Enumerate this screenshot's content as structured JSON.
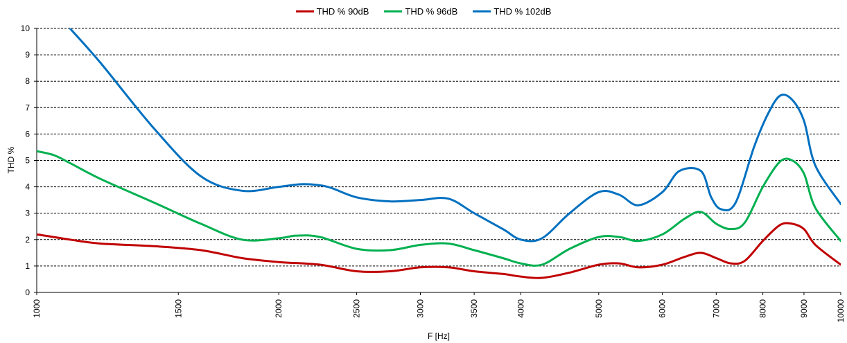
{
  "chart_data": {
    "type": "line",
    "title": "",
    "xlabel": "F [Hz]",
    "ylabel": "THD %",
    "xscale": "log",
    "xlim": [
      1000,
      10000
    ],
    "ylim": [
      0,
      10
    ],
    "grid": "horizontal dashed",
    "legend_position": "top",
    "x_ticks": [
      "1000",
      "1500",
      "2000",
      "2500",
      "3000",
      "3500",
      "4000",
      "5000",
      "6000",
      "7000",
      "8000",
      "9000",
      "10000"
    ],
    "y_ticks": [
      "0",
      "1",
      "2",
      "3",
      "4",
      "5",
      "6",
      "7",
      "8",
      "9",
      "10"
    ],
    "series": [
      {
        "name": "THD % 90dB",
        "color": "#c00000",
        "x": [
          1000,
          1100,
          1200,
          1400,
          1600,
          1800,
          2000,
          2250,
          2500,
          2750,
          3000,
          3250,
          3500,
          3800,
          4000,
          4250,
          4600,
          5000,
          5300,
          5600,
          6000,
          6400,
          6700,
          7000,
          7300,
          7600,
          8000,
          8400,
          8700,
          9000,
          9300,
          10000
        ],
        "y": [
          2.2,
          2.0,
          1.85,
          1.75,
          1.6,
          1.3,
          1.15,
          1.05,
          0.8,
          0.8,
          0.95,
          0.95,
          0.8,
          0.7,
          0.6,
          0.55,
          0.75,
          1.05,
          1.1,
          0.95,
          1.05,
          1.35,
          1.5,
          1.3,
          1.1,
          1.2,
          1.95,
          2.55,
          2.6,
          2.4,
          1.8,
          1.05
        ]
      },
      {
        "name": "THD % 96dB",
        "color": "#00b050",
        "x": [
          1000,
          1050,
          1100,
          1200,
          1400,
          1600,
          1800,
          2000,
          2100,
          2250,
          2500,
          2750,
          3000,
          3250,
          3500,
          3800,
          4000,
          4250,
          4600,
          5000,
          5300,
          5600,
          6000,
          6400,
          6700,
          7000,
          7300,
          7600,
          8000,
          8400,
          8700,
          9000,
          9300,
          10000
        ],
        "y": [
          5.35,
          5.2,
          4.9,
          4.3,
          3.4,
          2.6,
          2.0,
          2.05,
          2.15,
          2.1,
          1.65,
          1.6,
          1.8,
          1.85,
          1.6,
          1.3,
          1.1,
          1.05,
          1.65,
          2.1,
          2.1,
          1.95,
          2.2,
          2.8,
          3.05,
          2.6,
          2.4,
          2.65,
          4.0,
          4.95,
          5.0,
          4.5,
          3.2,
          1.95
        ]
      },
      {
        "name": "THD % 102dB",
        "color": "#0070c0",
        "x": [
          1100,
          1200,
          1400,
          1600,
          1800,
          2000,
          2150,
          2300,
          2500,
          2750,
          3000,
          3250,
          3500,
          3800,
          4000,
          4250,
          4600,
          5000,
          5300,
          5600,
          6000,
          6300,
          6700,
          6900,
          7100,
          7400,
          7800,
          8100,
          8400,
          8700,
          9000,
          9300,
          10000
        ],
        "y": [
          10.0,
          8.7,
          6.2,
          4.4,
          3.85,
          4.0,
          4.1,
          4.0,
          3.6,
          3.45,
          3.5,
          3.55,
          3.0,
          2.4,
          2.0,
          2.05,
          3.0,
          3.8,
          3.7,
          3.3,
          3.8,
          4.6,
          4.6,
          3.6,
          3.15,
          3.4,
          5.5,
          6.7,
          7.45,
          7.3,
          6.5,
          4.8,
          3.35
        ]
      }
    ]
  }
}
